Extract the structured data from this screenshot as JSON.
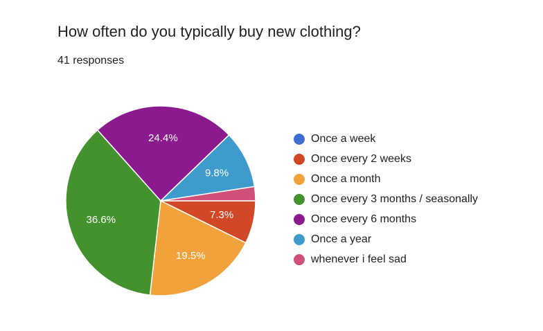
{
  "chart_data": {
    "type": "pie",
    "title": "How often do you typically buy new clothing?",
    "subtitle": "41 responses",
    "legend_position": "right",
    "slices": [
      {
        "label": "Once a week",
        "value": 0,
        "percent_label": "",
        "color": "#3d6ecf"
      },
      {
        "label": "Once every 2 weeks",
        "value": 7.3,
        "percent_label": "7.3%",
        "color": "#d24726"
      },
      {
        "label": "Once a month",
        "value": 19.5,
        "percent_label": "19.5%",
        "color": "#f2a23a"
      },
      {
        "label": "Once every 3 months / seasonally",
        "value": 36.6,
        "percent_label": "36.6%",
        "color": "#43922e"
      },
      {
        "label": "Once every 6 months",
        "value": 24.4,
        "percent_label": "24.4%",
        "color": "#8b1a8f"
      },
      {
        "label": "Once a year",
        "value": 9.8,
        "percent_label": "9.8%",
        "color": "#3f9bcb"
      },
      {
        "label": "whenever i feel sad",
        "value": 2.4,
        "percent_label": "",
        "color": "#d0507a"
      }
    ]
  }
}
